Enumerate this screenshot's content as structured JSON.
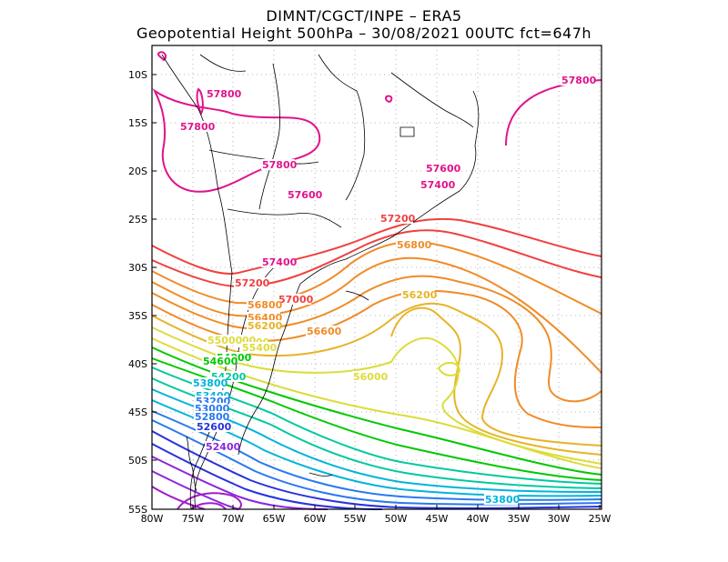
{
  "header": {
    "line1": "DIMNT/CGCT/INPE –  ERA5",
    "line2": "Geopotential Height 500hPa –  30/08/2021 00UTC fct=647h"
  },
  "axes": {
    "x_ticks": [
      "80W",
      "75W",
      "70W",
      "65W",
      "60W",
      "55W",
      "50W",
      "45W",
      "40W",
      "35W",
      "30W",
      "25W"
    ],
    "y_ticks": [
      "10S",
      "15S",
      "20S",
      "25S",
      "30S",
      "35S",
      "40S",
      "45S",
      "50S",
      "55S"
    ]
  },
  "contour_labels": [
    "57800",
    "57800",
    "57800",
    "57800",
    "57600",
    "57600",
    "57400",
    "57400",
    "57200",
    "57200",
    "57000",
    "56800",
    "56800",
    "56600",
    "56400",
    "56200",
    "56200",
    "56000",
    "55800",
    "55600",
    "55400",
    "55000",
    "54800",
    "54600",
    "54200",
    "53800",
    "53800",
    "53400",
    "53200",
    "53000",
    "52800",
    "52600",
    "52400"
  ],
  "colors": {
    "frame": "#000000",
    "grid": "#a0a0a0",
    "coast": "#000000",
    "h57800": "#e0148c",
    "h57200": "#f04040",
    "h56800": "#f08c28",
    "h56200": "#e6b428",
    "h56000": "#dcdc3c",
    "h55200": "#00c800",
    "h54200": "#00c8a0",
    "h53800": "#00b4dc",
    "h53200": "#2878f0",
    "h52600": "#2832dc",
    "h52400": "#8c28dc",
    "h52000": "#a01ec8"
  }
}
